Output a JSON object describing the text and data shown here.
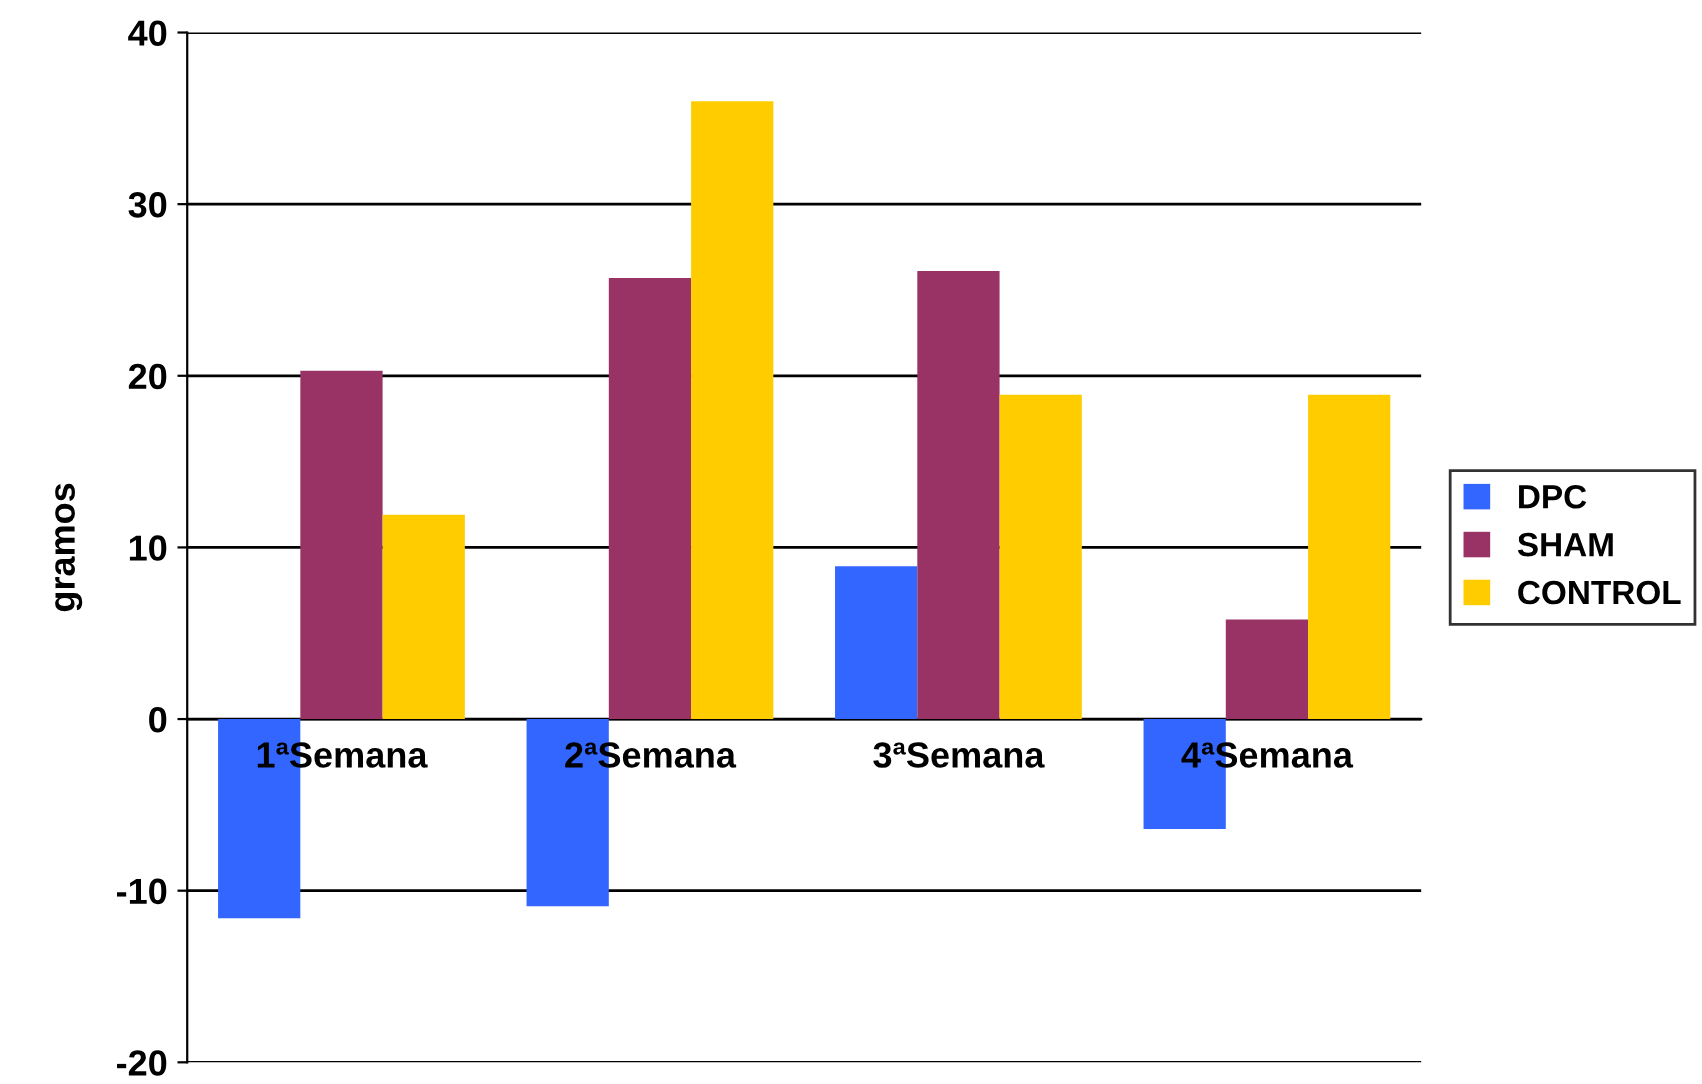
{
  "chart_data": {
    "type": "bar",
    "ylabel": "gramos",
    "categories": [
      "1ªSemana",
      "2ªSemana",
      "3ªSemana",
      "4ªSemana"
    ],
    "series": [
      {
        "name": "DPC",
        "color": "#3366ff",
        "values": [
          -11.6,
          -10.9,
          8.9,
          -6.4
        ]
      },
      {
        "name": "SHAM",
        "color": "#993366",
        "values": [
          20.3,
          25.7,
          26.1,
          5.8
        ]
      },
      {
        "name": "CONTROL",
        "color": "#ffcc00",
        "values": [
          11.9,
          36.0,
          18.9,
          18.9
        ]
      }
    ],
    "ylim": [
      -20,
      40
    ],
    "yticks": [
      -20,
      -10,
      0,
      10,
      20,
      30,
      40
    ],
    "grid": "y",
    "legend": "right"
  }
}
